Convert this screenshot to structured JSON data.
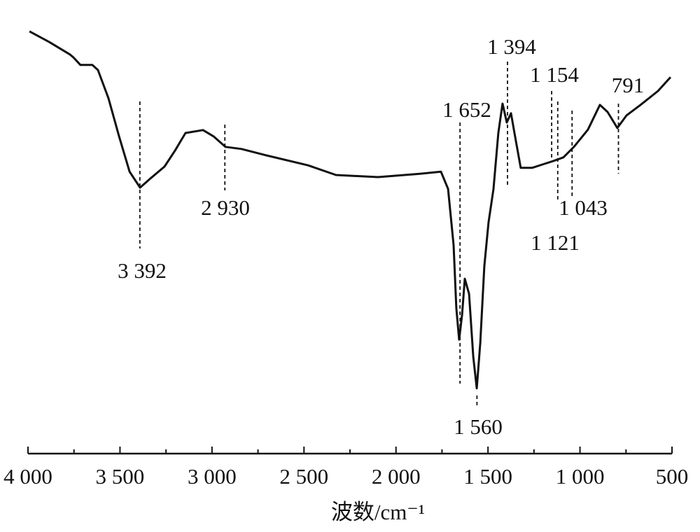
{
  "chart_data": {
    "type": "line",
    "x_label": "波数/cm⁻¹",
    "xlim": [
      4000,
      500
    ],
    "ylim": [
      0,
      100
    ],
    "xticks": [
      {
        "value": 4000,
        "label": "4 000"
      },
      {
        "value": 3500,
        "label": "3 500"
      },
      {
        "value": 3000,
        "label": "3 000"
      },
      {
        "value": 2500,
        "label": "2 500"
      },
      {
        "value": 2000,
        "label": "2 000"
      },
      {
        "value": 1500,
        "label": "1 500"
      },
      {
        "value": 1000,
        "label": "1 000"
      },
      500
    ],
    "xminorticks": [
      3750,
      3250,
      2750,
      2250,
      1750,
      1250,
      750
    ],
    "color": "#111111",
    "x": [
      3992,
      3886,
      3772,
      3753,
      3715,
      3650,
      3620,
      3563,
      3505,
      3448,
      3391,
      3334,
      3258,
      3201,
      3144,
      3049,
      2992,
      2927,
      2840,
      2707,
      2478,
      2326,
      2098,
      1870,
      1756,
      1717,
      1687,
      1672,
      1657,
      1641,
      1626,
      1603,
      1580,
      1561,
      1542,
      1520,
      1497,
      1470,
      1444,
      1421,
      1398,
      1375,
      1353,
      1322,
      1261,
      1204,
      1147,
      1090,
      1033,
      957,
      892,
      850,
      797,
      747,
      671,
      576,
      508
    ],
    "values": [
      99.2,
      96.7,
      93.7,
      93,
      91.2,
      91.2,
      90,
      83.3,
      74.2,
      65.8,
      62,
      64.2,
      67,
      70.8,
      75,
      75.7,
      74.2,
      71.7,
      71.2,
      69.7,
      67.3,
      65,
      64.5,
      65.3,
      65.8,
      61.7,
      48.3,
      33.3,
      25.8,
      31.7,
      40.3,
      36.7,
      21.7,
      14.2,
      25,
      43.3,
      53.7,
      61.7,
      75,
      82,
      77.5,
      79.7,
      74.2,
      66.7,
      66.7,
      67.5,
      68.3,
      69.2,
      71.7,
      75.8,
      81.7,
      80,
      76.2,
      79.2,
      81.7,
      85,
      88.3
    ],
    "annotations": [
      {
        "value": 3392,
        "label": "3 392"
      },
      {
        "value": 2930,
        "label": "2 930"
      },
      {
        "value": 1652,
        "label": "1 652"
      },
      {
        "value": 1560,
        "label": "1 560"
      },
      {
        "value": 1394,
        "label": "1 394"
      },
      {
        "value": 1154,
        "label": "1 154"
      },
      {
        "value": 1121,
        "label": "1 121"
      },
      {
        "value": 1043,
        "label": "1 043"
      },
      {
        "value": 791,
        "label": "791"
      }
    ]
  }
}
